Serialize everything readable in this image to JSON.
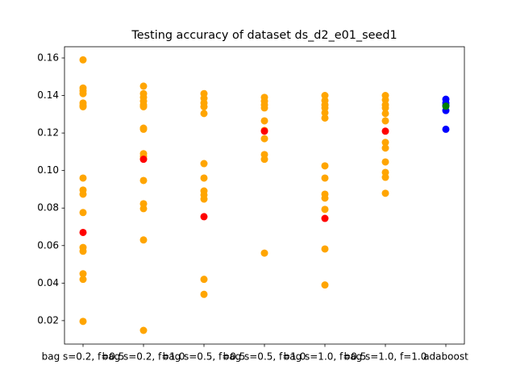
{
  "chart_data": {
    "type": "scatter",
    "title": "Testing accuracy of dataset ds_d2_e01_seed1",
    "categories": [
      "bag s=0.2, f=0.5",
      "bag s=0.2, f=1.0",
      "bag s=0.5, f=0.5",
      "bag s=0.5, f=1.0",
      "bag s=1.0, f=0.5",
      "bag s=1.0, f=1.0",
      "adaboost"
    ],
    "series": [
      {
        "color": "#ffa500",
        "values": [
          [
            0.159,
            0.144,
            0.1425,
            0.141,
            0.136,
            0.1347,
            0.134,
            0.096,
            0.0896,
            0.0874,
            0.0776,
            0.059,
            0.057,
            0.045,
            0.042,
            0.0196
          ],
          [
            0.145,
            0.141,
            0.139,
            0.137,
            0.135,
            0.134,
            0.1226,
            0.122,
            0.109,
            0.1076,
            0.1063,
            0.0947,
            0.0823,
            0.0797,
            0.063,
            0.0148
          ],
          [
            0.141,
            0.1385,
            0.136,
            0.134,
            0.1304,
            0.1037,
            0.096,
            0.0891,
            0.087,
            0.0848,
            0.042,
            0.034
          ],
          [
            0.139,
            0.137,
            0.135,
            0.1334,
            0.1265,
            0.1214,
            0.117,
            0.1085,
            0.106,
            0.056
          ],
          [
            0.14,
            0.1373,
            0.135,
            0.1334,
            0.1308,
            0.128,
            0.1025,
            0.096,
            0.0874,
            0.0853,
            0.0793,
            0.0582,
            0.039
          ],
          [
            0.14,
            0.1377,
            0.135,
            0.1334,
            0.1304,
            0.1265,
            0.115,
            0.112,
            0.1046,
            0.099,
            0.0964,
            0.0879
          ],
          []
        ]
      },
      {
        "color": "#ff0000",
        "values": [
          [
            0.067
          ],
          [
            0.106
          ],
          [
            0.0754
          ],
          [
            0.121
          ],
          [
            0.0745
          ],
          [
            0.121
          ],
          []
        ]
      },
      {
        "color": "#0000ff",
        "values": [
          [],
          [],
          [],
          [],
          [],
          [],
          [
            0.138,
            0.136,
            0.1347,
            0.132,
            0.122
          ]
        ]
      },
      {
        "color": "#008000",
        "values": [
          [],
          [],
          [],
          [],
          [],
          [],
          [
            0.1343
          ]
        ]
      }
    ],
    "ylim": [
      0.0075,
      0.166
    ],
    "yticks": [
      0.02,
      0.04,
      0.06,
      0.08,
      {
        "value": 0.1,
        "label": "0.10"
      },
      0.12,
      0.14,
      0.16
    ]
  }
}
